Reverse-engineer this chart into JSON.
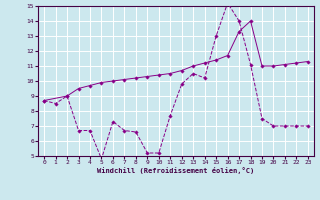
{
  "xlabel": "Windchill (Refroidissement éolien,°C)",
  "bg_color": "#cce8ee",
  "grid_color": "#ffffff",
  "line_color": "#880088",
  "xlim": [
    -0.5,
    23.5
  ],
  "ylim": [
    5,
    15
  ],
  "yticks": [
    5,
    6,
    7,
    8,
    9,
    10,
    11,
    12,
    13,
    14,
    15
  ],
  "xticks": [
    0,
    1,
    2,
    3,
    4,
    5,
    6,
    7,
    8,
    9,
    10,
    11,
    12,
    13,
    14,
    15,
    16,
    17,
    18,
    19,
    20,
    21,
    22,
    23
  ],
  "line1_x": [
    0,
    1,
    2,
    3,
    4,
    5,
    6,
    7,
    8,
    9,
    10,
    11,
    12,
    13,
    14,
    15,
    16,
    17,
    18,
    19,
    20,
    21,
    22,
    23
  ],
  "line1_y": [
    8.7,
    8.5,
    9.0,
    6.7,
    6.7,
    4.8,
    7.3,
    6.7,
    6.6,
    5.2,
    5.2,
    7.7,
    9.8,
    10.5,
    10.2,
    13.0,
    15.2,
    14.0,
    11.1,
    7.5,
    7.0,
    7.0,
    7.0,
    7.0
  ],
  "line2_x": [
    0,
    2,
    3,
    4,
    5,
    6,
    7,
    8,
    9,
    10,
    11,
    12,
    13,
    14,
    15,
    16,
    17,
    18,
    19,
    20,
    21,
    22,
    23
  ],
  "line2_y": [
    8.7,
    9.0,
    9.5,
    9.7,
    9.9,
    10.0,
    10.1,
    10.2,
    10.3,
    10.4,
    10.5,
    10.7,
    11.0,
    11.2,
    11.4,
    11.7,
    13.3,
    14.0,
    11.0,
    11.0,
    11.1,
    11.2,
    11.3
  ]
}
